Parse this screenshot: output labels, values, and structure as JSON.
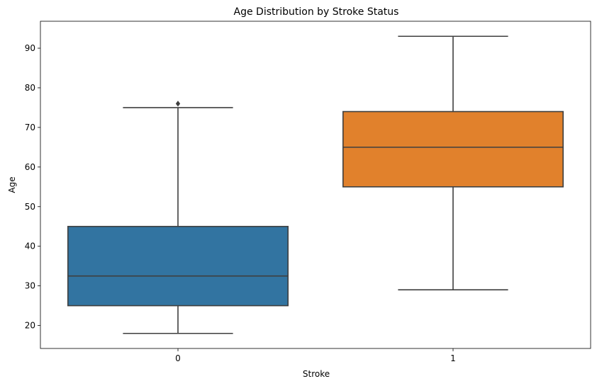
{
  "chart_data": {
    "type": "box",
    "title": "Age Distribution by Stroke Status",
    "xlabel": "Stroke",
    "ylabel": "Age",
    "ylim": [
      14.2,
      96.8
    ],
    "yticks": [
      20,
      30,
      40,
      50,
      60,
      70,
      80,
      90
    ],
    "categories": [
      "0",
      "1"
    ],
    "grid": false,
    "legend": "none",
    "boxes": [
      {
        "category": "0",
        "whisker_low": 18,
        "q1": 25,
        "median": 32.5,
        "q3": 45,
        "whisker_high": 75,
        "outliers": [
          76
        ],
        "color": "#3274a1"
      },
      {
        "category": "1",
        "whisker_low": 29,
        "q1": 55,
        "median": 65,
        "q3": 74,
        "whisker_high": 93,
        "outliers": [],
        "color": "#e1812c"
      }
    ],
    "line_color": "#3f3f3f"
  }
}
